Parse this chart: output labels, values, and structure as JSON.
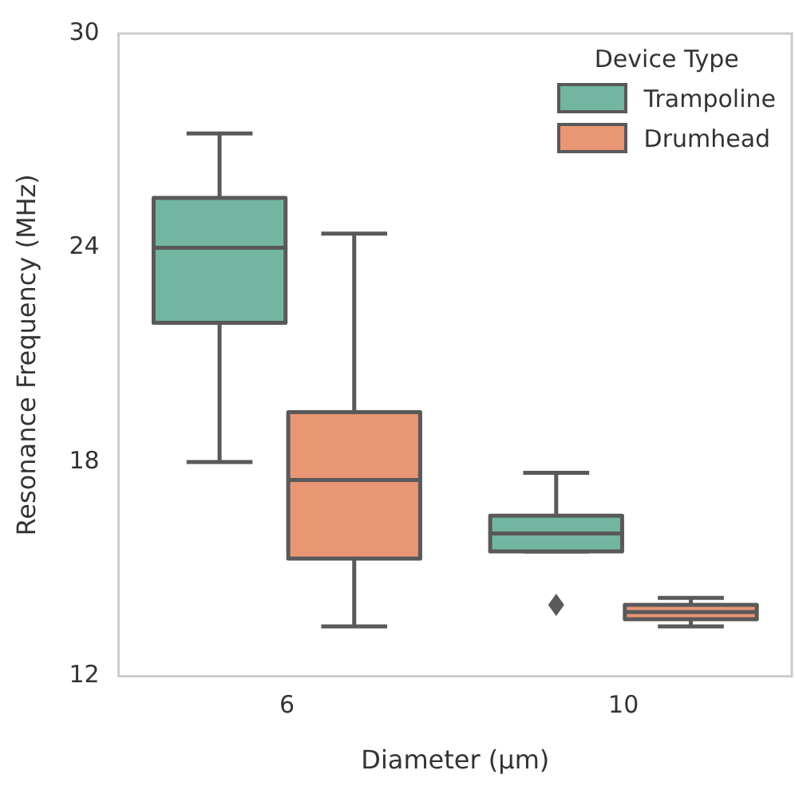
{
  "chart_data": {
    "type": "box",
    "xlabel": "Diameter (µm)",
    "ylabel": "Resonance Frequency (MHz)",
    "legend_title": "Device Type",
    "legend": "top right",
    "grid": false,
    "marker": "diamond",
    "categories": [
      "6",
      "10"
    ],
    "ylim": [
      12,
      30
    ],
    "yticks": [
      12,
      18,
      24,
      30
    ],
    "series": [
      {
        "name": "Trampoline",
        "color": "#72b6a1",
        "boxes": [
          {
            "low": 18.0,
            "q1": 21.9,
            "median": 24.0,
            "q3": 25.4,
            "high": 27.2
          },
          {
            "low": 15.5,
            "q1": 15.5,
            "median": 16.0,
            "q3": 16.5,
            "high": 17.7,
            "outliers": [
              14.0
            ]
          }
        ]
      },
      {
        "name": "Drumhead",
        "color": "#e99675",
        "boxes": [
          {
            "low": 13.4,
            "q1": 15.3,
            "median": 17.5,
            "q3": 19.4,
            "high": 24.4
          },
          {
            "low": 13.4,
            "q1": 13.6,
            "median": 13.8,
            "q3": 14.0,
            "high": 14.2
          }
        ]
      }
    ]
  }
}
